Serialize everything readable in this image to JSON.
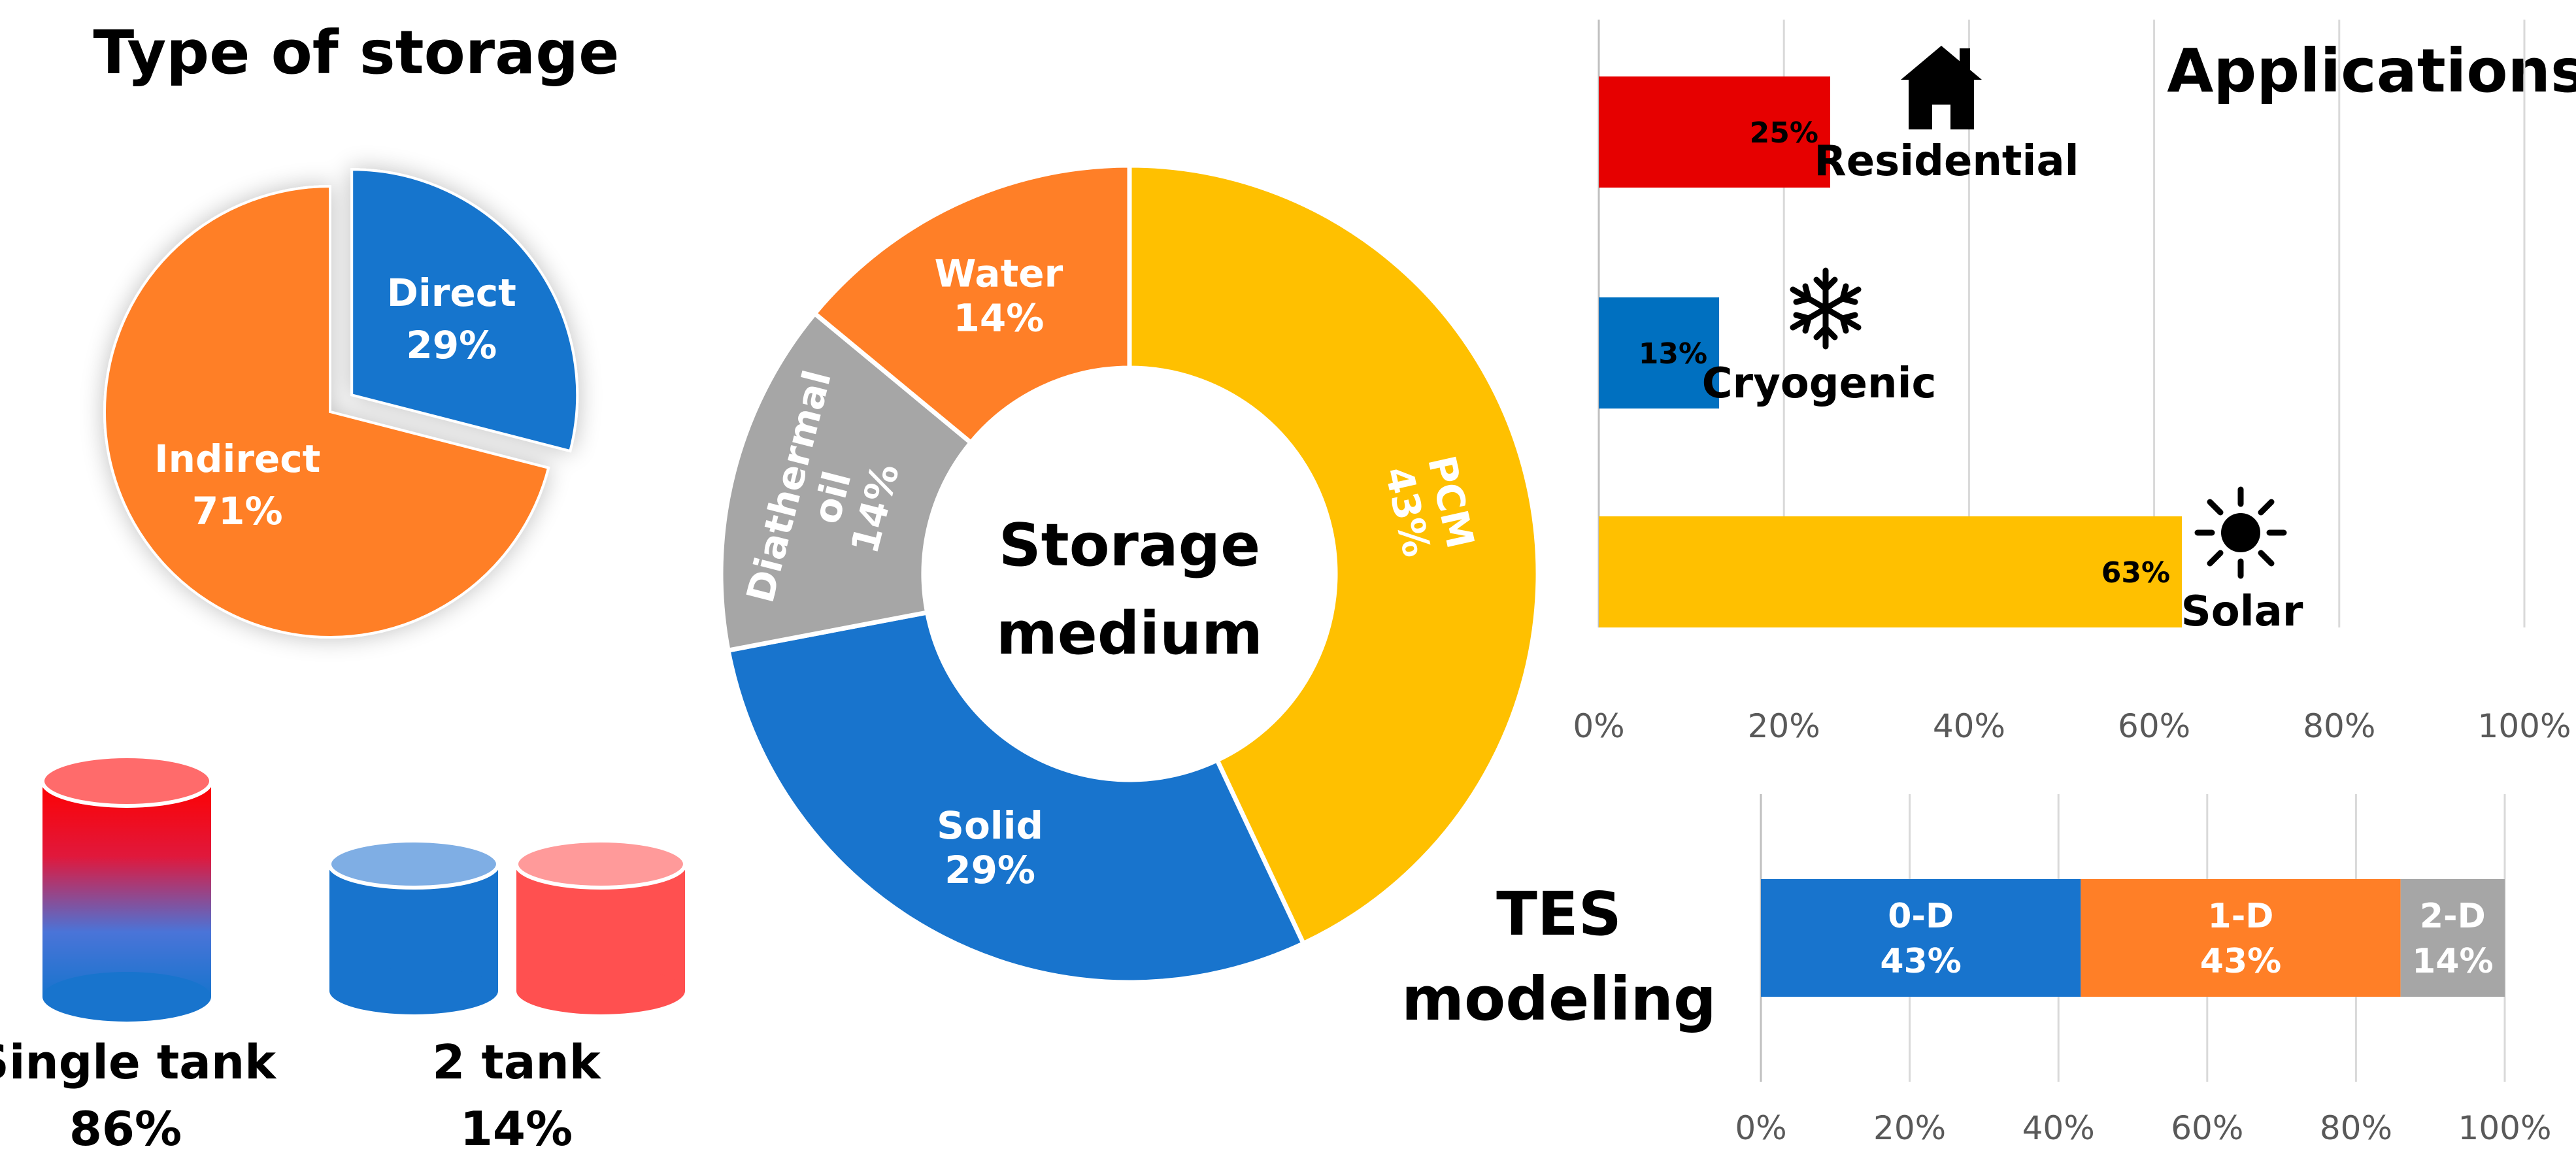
{
  "colors": {
    "orange": "#FF7F27",
    "blue": "#1874CD",
    "yellow": "#FFC000",
    "gray": "#A6A6A6",
    "red": "#E60000",
    "steel_blue": "#0070C0",
    "tank_red": "#FF5050",
    "gridline": "#D9D9D9",
    "tick_text": "#595959"
  },
  "chart_data": [
    {
      "id": "type_of_storage",
      "type": "pie",
      "title": "Type of storage",
      "slices": [
        {
          "label": "Direct",
          "value": 29,
          "display": "29%",
          "color": "#1874CD",
          "exploded": true
        },
        {
          "label": "Indirect",
          "value": 71,
          "display": "71%",
          "color": "#FF7F27",
          "exploded": false
        }
      ]
    },
    {
      "id": "storage_medium",
      "type": "pie",
      "title": "Storage medium",
      "title_lines": [
        "Storage",
        "medium"
      ],
      "donut": true,
      "slices": [
        {
          "label": "PCM",
          "value": 43,
          "display": "43%",
          "color": "#FFC000",
          "label_lines": [
            "PCM",
            "43%"
          ]
        },
        {
          "label": "Solid",
          "value": 29,
          "display": "29%",
          "color": "#1874CD",
          "label_lines": [
            "Solid",
            "29%"
          ]
        },
        {
          "label": "Diathermal oil",
          "value": 14,
          "display": "14%",
          "color": "#A6A6A6",
          "label_lines": [
            "Diathermal",
            "oil",
            "14%"
          ]
        },
        {
          "label": "Water",
          "value": 14,
          "display": "14%",
          "color": "#FF7F27",
          "label_lines": [
            "Water",
            "14%"
          ]
        }
      ]
    },
    {
      "id": "applications",
      "type": "bar",
      "orientation": "horizontal",
      "title": "Applications",
      "categories": [
        "Residential",
        "Cryogenic",
        "Solar"
      ],
      "values": [
        25,
        13,
        63
      ],
      "value_labels": [
        "25%",
        "13%",
        "63%"
      ],
      "bar_colors": [
        "#E60000",
        "#0070C0",
        "#FFC000"
      ],
      "icons": [
        "house-icon",
        "snowflake-icon",
        "sun-icon"
      ],
      "xlim": [
        0,
        100
      ],
      "xticks": [
        "0%",
        "20%",
        "40%",
        "60%",
        "80%",
        "100%"
      ],
      "grid": true
    },
    {
      "id": "tes_modeling",
      "type": "bar",
      "orientation": "horizontal",
      "stacked": true,
      "title": "TES modeling",
      "title_lines": [
        "TES",
        "modeling"
      ],
      "segments": [
        {
          "label": "0-D",
          "value": 43,
          "display": "43%",
          "color": "#1874CD"
        },
        {
          "label": "1-D",
          "value": 43,
          "display": "43%",
          "color": "#FF7F27"
        },
        {
          "label": "2-D",
          "value": 14,
          "display": "14%",
          "color": "#A6A6A6"
        }
      ],
      "xlim": [
        0,
        100
      ],
      "xticks": [
        "0%",
        "20%",
        "40%",
        "60%",
        "80%",
        "100%"
      ],
      "grid": true
    },
    {
      "id": "tank_configuration",
      "type": "table",
      "items": [
        {
          "label": "Single tank",
          "value": 86,
          "display": "86%",
          "icon": "single-tank-icon"
        },
        {
          "label": "2 tank",
          "value": 14,
          "display": "14%",
          "icon": "two-tank-icon"
        }
      ]
    }
  ]
}
